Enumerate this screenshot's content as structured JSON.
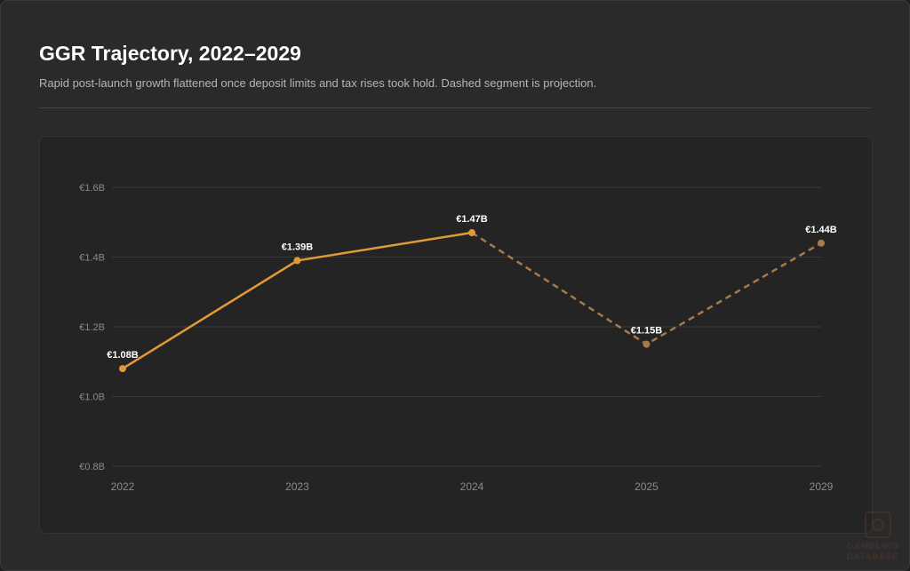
{
  "header": {
    "title": "GGR Trajectory, 2022–2029",
    "subtitle": "Rapid post-launch growth flattened once deposit limits and tax rises took hold. Dashed segment is projection."
  },
  "watermark": {
    "line1": "GAMBLING",
    "line2": "DATABASE"
  },
  "colors": {
    "actual_line": "#e29a38",
    "projection_line": "#a57a4a",
    "grid": "#3a3a3a",
    "tick_text": "#8a8a8a",
    "label_text": "#ffffff"
  },
  "chart_data": {
    "type": "line",
    "title": "GGR Trajectory, 2022–2029",
    "categories": [
      "2022",
      "2023",
      "2024",
      "2025",
      "2029"
    ],
    "series": [
      {
        "values": [
          1.08,
          1.39,
          1.47,
          1.15,
          1.44
        ],
        "value_labels": [
          "€1.08B",
          "€1.39B",
          "€1.47B",
          "€1.15B",
          "€1.44B"
        ],
        "projected_from_index": 2
      }
    ],
    "y_ticks": [
      0.8,
      1.0,
      1.2,
      1.4,
      1.6
    ],
    "y_tick_labels": [
      "€0.8B",
      "€1.0B",
      "€1.2B",
      "€1.4B",
      "€1.6B"
    ],
    "ylim": [
      0.8,
      1.6
    ],
    "grid": true,
    "legend": "none"
  }
}
